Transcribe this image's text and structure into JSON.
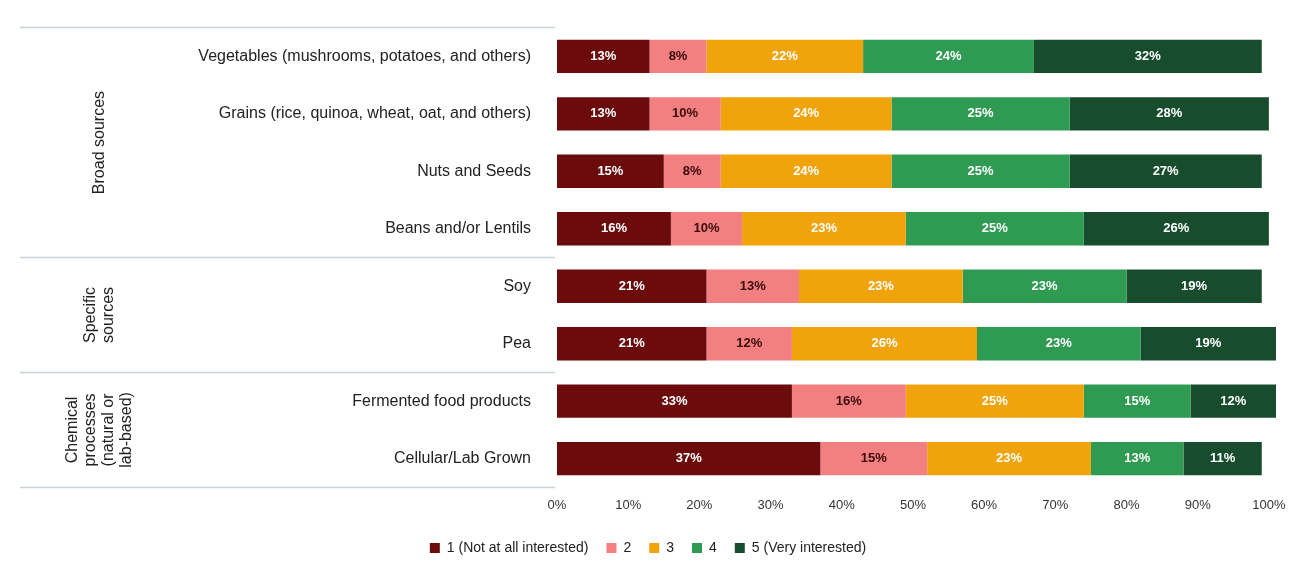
{
  "chart_data": {
    "type": "bar",
    "orientation": "horizontal",
    "stacked": true,
    "categories": [
      "Vegetables (mushrooms, potatoes, and others)",
      "Grains (rice, quinoa, wheat, oat, and others)",
      "Nuts and Seeds",
      "Beans and/or Lentils",
      "Soy",
      "Pea",
      "Fermented food products",
      "Cellular/Lab Grown"
    ],
    "series": [
      {
        "name": "1 (Not at all interested)",
        "color": "#6b0b0b",
        "values": [
          13,
          13,
          15,
          16,
          21,
          21,
          33,
          37
        ],
        "value_labels": [
          "13%",
          "13%",
          "15%",
          "16%",
          "21%",
          "21%",
          "33%",
          "37%"
        ]
      },
      {
        "name": "2",
        "color": "#f28080",
        "values": [
          8,
          10,
          8,
          10,
          13,
          12,
          16,
          15
        ],
        "value_labels": [
          "8%",
          "10%",
          "8%",
          "10%",
          "13%",
          "12%",
          "16%",
          "15%"
        ]
      },
      {
        "name": "3",
        "color": "#f0a30a",
        "values": [
          22,
          24,
          24,
          23,
          23,
          26,
          25,
          23
        ],
        "value_labels": [
          "22%",
          "24%",
          "24%",
          "23%",
          "23%",
          "26%",
          "25%",
          "23%"
        ]
      },
      {
        "name": "4",
        "color": "#2e9a52",
        "values": [
          24,
          25,
          25,
          25,
          23,
          23,
          15,
          13
        ],
        "value_labels": [
          "24%",
          "25%",
          "25%",
          "25%",
          "23%",
          "23%",
          "15%",
          "13%"
        ]
      },
      {
        "name": "5 (Very interested)",
        "color": "#174d2c",
        "values": [
          32,
          28,
          27,
          26,
          19,
          19,
          12,
          11
        ],
        "value_labels": [
          "32%",
          "28%",
          "27%",
          "26%",
          "19%",
          "19%",
          "12%",
          "11%"
        ]
      }
    ],
    "xlim": [
      0,
      101
    ],
    "xticks": [
      {
        "value": 0,
        "label": "0%"
      },
      {
        "value": 10,
        "label": "10%"
      },
      {
        "value": 20,
        "label": "20%"
      },
      {
        "value": 30,
        "label": "30%"
      },
      {
        "value": 40,
        "label": "40%"
      },
      {
        "value": 50,
        "label": "50%"
      },
      {
        "value": 60,
        "label": "60%"
      },
      {
        "value": 70,
        "label": "70%"
      },
      {
        "value": 80,
        "label": "80%"
      },
      {
        "value": 90,
        "label": "90%"
      },
      {
        "value": 100,
        "label": "100%"
      }
    ],
    "grid": false,
    "legend": "bottom",
    "annotations": [
      "Broad sources",
      "Specific sources",
      "Chemical processes (natural or lab-based)"
    ]
  }
}
